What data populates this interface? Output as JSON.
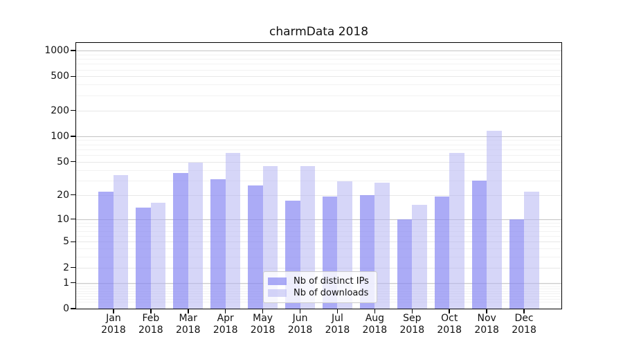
{
  "chart_data": {
    "type": "bar",
    "title": "charmData 2018",
    "categories": [
      "Jan 2018",
      "Feb 2018",
      "Mar 2018",
      "Apr 2018",
      "May 2018",
      "Jun 2018",
      "Jul 2018",
      "Aug 2018",
      "Sep 2018",
      "Oct 2018",
      "Nov 2018",
      "Dec 2018"
    ],
    "series": [
      {
        "name": "Nb of distinct IPs",
        "color": "rgba(135,135,242,0.70)",
        "color_hex": "#a9a9f4",
        "values": [
          22,
          14,
          37,
          31,
          26,
          17,
          19,
          20,
          10,
          19,
          30,
          10
        ]
      },
      {
        "name": "Nb of downloads",
        "color": "rgba(180,180,243,0.55)",
        "color_hex": "#d8d8f8",
        "values": [
          35,
          16,
          49,
          63,
          44,
          44,
          29,
          28,
          15,
          63,
          116,
          22
        ]
      }
    ],
    "y_ticks": [
      0,
      1,
      2,
      5,
      10,
      20,
      50,
      100,
      200,
      500,
      1000
    ],
    "y_minor_ticks": [
      0.2,
      0.3,
      0.4,
      0.5,
      0.6,
      0.7,
      0.8,
      0.9,
      3,
      4,
      6,
      7,
      8,
      9,
      30,
      40,
      60,
      70,
      80,
      90,
      300,
      400,
      600,
      700,
      800,
      900
    ],
    "ylim": [
      0,
      1000
    ],
    "y_scale": "symlog-log1p",
    "grid": true,
    "legend_position": "inside-bottom-center",
    "grid_colors": {
      "major": "#c3c3c3",
      "mid": "#e7e7e7",
      "minor": "#f2f2f2"
    }
  }
}
